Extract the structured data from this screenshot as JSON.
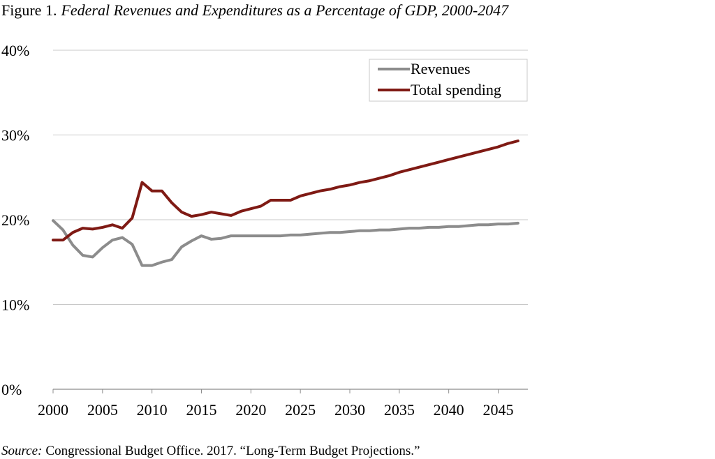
{
  "chart_data": {
    "type": "line",
    "figure_label": "Figure 1.",
    "title": "Federal Revenues and Expenditures as a Percentage of GDP, 2000-2047",
    "source_label": "Source:",
    "source": "Congressional Budget Office. 2017. “Long-Term Budget Projections.”",
    "x": [
      2000,
      2001,
      2002,
      2003,
      2004,
      2005,
      2006,
      2007,
      2008,
      2009,
      2010,
      2011,
      2012,
      2013,
      2014,
      2015,
      2016,
      2017,
      2018,
      2019,
      2020,
      2021,
      2022,
      2023,
      2024,
      2025,
      2026,
      2027,
      2028,
      2029,
      2030,
      2031,
      2032,
      2033,
      2034,
      2035,
      2036,
      2037,
      2038,
      2039,
      2040,
      2041,
      2042,
      2043,
      2044,
      2045,
      2046,
      2047
    ],
    "series": [
      {
        "name": "Revenues",
        "color": "#8c8c8c",
        "values": [
          19.9,
          18.8,
          17.0,
          15.8,
          15.6,
          16.7,
          17.6,
          17.9,
          17.1,
          14.6,
          14.6,
          15.0,
          15.3,
          16.8,
          17.5,
          18.1,
          17.7,
          17.8,
          18.1,
          18.1,
          18.1,
          18.1,
          18.1,
          18.1,
          18.2,
          18.2,
          18.3,
          18.4,
          18.5,
          18.5,
          18.6,
          18.7,
          18.7,
          18.8,
          18.8,
          18.9,
          19.0,
          19.0,
          19.1,
          19.1,
          19.2,
          19.2,
          19.3,
          19.4,
          19.4,
          19.5,
          19.5,
          19.6
        ]
      },
      {
        "name": "Total spending",
        "color": "#7f1a14",
        "values": [
          17.6,
          17.6,
          18.5,
          19.0,
          18.9,
          19.1,
          19.4,
          19.0,
          20.2,
          24.4,
          23.4,
          23.4,
          22.0,
          20.9,
          20.4,
          20.6,
          20.9,
          20.7,
          20.5,
          21.0,
          21.3,
          21.6,
          22.3,
          22.3,
          22.3,
          22.8,
          23.1,
          23.4,
          23.6,
          23.9,
          24.1,
          24.4,
          24.6,
          24.9,
          25.2,
          25.6,
          25.9,
          26.2,
          26.5,
          26.8,
          27.1,
          27.4,
          27.7,
          28.0,
          28.3,
          28.6,
          29.0,
          29.3
        ]
      }
    ],
    "xlim": [
      2000,
      2048
    ],
    "xticks": [
      2000,
      2005,
      2010,
      2015,
      2020,
      2025,
      2030,
      2035,
      2040,
      2045
    ],
    "ylim": [
      0,
      40
    ],
    "yticks": [
      {
        "value": 0,
        "label": "0%"
      },
      {
        "value": 10,
        "label": "10%"
      },
      {
        "value": 20,
        "label": "20%"
      },
      {
        "value": 30,
        "label": "30%"
      },
      {
        "value": 40,
        "label": "40%"
      }
    ],
    "grid": true,
    "legend": "upper right"
  }
}
